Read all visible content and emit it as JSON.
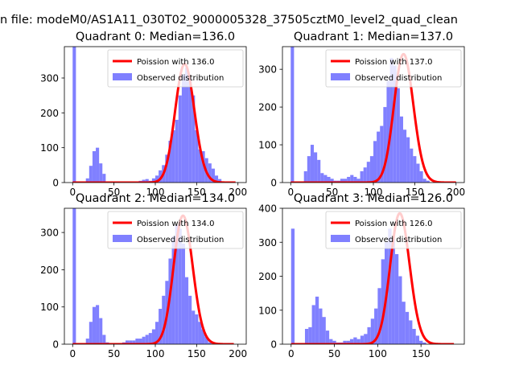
{
  "figure": {
    "suptitle": "n file: modeM0/AS1A11_030T02_9000005328_37505cztM0_level2_quad_clean"
  },
  "chart_data": [
    {
      "type": "bar",
      "title": "Quadrant 0: Median=136.0",
      "median": 136.0,
      "xlim": [
        -10,
        210
      ],
      "ylim": [
        0,
        390
      ],
      "xticks": [
        0,
        50,
        100,
        150,
        200
      ],
      "yticks": [
        0,
        100,
        200,
        300
      ],
      "legend_loc": "upper-right",
      "legend": [
        "Poission with 136.0",
        "Observed distribution"
      ],
      "bar_color": "#8080ff",
      "line_color": "#ff0000",
      "series": [
        {
          "name": "Poission with 136.0",
          "kind": "line",
          "x_range": [
            0,
            197
          ],
          "peak": 340,
          "mu": 136
        },
        {
          "name": "Observed distribution",
          "kind": "bar",
          "bin_start": 0,
          "bin_width": 4,
          "values": [
            390,
            0,
            0,
            0,
            12,
            48,
            90,
            100,
            55,
            25,
            0,
            0,
            0,
            0,
            0,
            0,
            0,
            0,
            0,
            0,
            5,
            8,
            10,
            5,
            12,
            20,
            35,
            50,
            80,
            120,
            150,
            180,
            250,
            310,
            330,
            300,
            250,
            150,
            95,
            90,
            70,
            55,
            40,
            20,
            10,
            0,
            0,
            0,
            0,
            0
          ]
        }
      ]
    },
    {
      "type": "bar",
      "title": "Quadrant 1: Median=137.0",
      "median": 137.0,
      "xlim": [
        -10,
        210
      ],
      "ylim": [
        0,
        360
      ],
      "xticks": [
        0,
        50,
        100,
        150,
        200
      ],
      "yticks": [
        0,
        100,
        200,
        300
      ],
      "legend_loc": "upper-right",
      "legend": [
        "Poission with 137.0",
        "Observed distribution"
      ],
      "bar_color": "#8080ff",
      "line_color": "#ff0000",
      "series": [
        {
          "name": "Poission with 137.0",
          "kind": "line",
          "x_range": [
            0,
            200
          ],
          "peak": 340,
          "mu": 137
        },
        {
          "name": "Observed distribution",
          "kind": "bar",
          "bin_start": 0,
          "bin_width": 4,
          "values": [
            360,
            0,
            0,
            0,
            30,
            70,
            100,
            80,
            60,
            25,
            20,
            15,
            10,
            5,
            5,
            10,
            10,
            15,
            20,
            15,
            10,
            30,
            40,
            55,
            70,
            110,
            135,
            150,
            200,
            270,
            330,
            310,
            250,
            175,
            140,
            120,
            90,
            70,
            50,
            30,
            10,
            5,
            0,
            0,
            0,
            0,
            0,
            0,
            0,
            0
          ]
        }
      ]
    },
    {
      "type": "bar",
      "title": "Quadrant 2: Median=134.0",
      "median": 134.0,
      "xlim": [
        -10,
        210
      ],
      "ylim": [
        0,
        365
      ],
      "xticks": [
        0,
        50,
        100,
        150,
        200
      ],
      "yticks": [
        0,
        100,
        200,
        300
      ],
      "legend_loc": "upper-right",
      "legend": [
        "Poission with 134.0",
        "Observed distribution"
      ],
      "bar_color": "#8080ff",
      "line_color": "#ff0000",
      "series": [
        {
          "name": "Poission with 134.0",
          "kind": "line",
          "x_range": [
            0,
            195
          ],
          "peak": 345,
          "mu": 134
        },
        {
          "name": "Observed distribution",
          "kind": "bar",
          "bin_start": 0,
          "bin_width": 4,
          "values": [
            365,
            0,
            0,
            0,
            15,
            60,
            100,
            105,
            70,
            25,
            5,
            0,
            0,
            0,
            0,
            5,
            10,
            10,
            10,
            15,
            15,
            20,
            25,
            30,
            40,
            60,
            95,
            130,
            170,
            230,
            290,
            320,
            310,
            270,
            180,
            130,
            90,
            80,
            60,
            40,
            20,
            5,
            0,
            0,
            0,
            0,
            0,
            0,
            0,
            0
          ]
        }
      ]
    },
    {
      "type": "bar",
      "title": "Quadrant 3: Median=126.0",
      "median": 126.0,
      "xlim": [
        -10,
        200
      ],
      "ylim": [
        0,
        400
      ],
      "xticks": [
        0,
        50,
        100,
        150
      ],
      "yticks": [
        0,
        100,
        200,
        300,
        400
      ],
      "legend_loc": "upper-right",
      "legend": [
        "Poission with 126.0",
        "Observed distribution"
      ],
      "bar_color": "#8080ff",
      "line_color": "#ff0000",
      "series": [
        {
          "name": "Poission with 126.0",
          "kind": "line",
          "x_range": [
            0,
            188
          ],
          "peak": 385,
          "mu": 126
        },
        {
          "name": "Observed distribution",
          "kind": "bar",
          "bin_start": 0,
          "bin_width": 4,
          "values": [
            340,
            0,
            0,
            0,
            45,
            50,
            115,
            140,
            105,
            80,
            40,
            15,
            10,
            5,
            5,
            10,
            10,
            15,
            20,
            15,
            25,
            30,
            50,
            75,
            105,
            165,
            250,
            300,
            340,
            310,
            265,
            200,
            125,
            95,
            70,
            45,
            25,
            10,
            5,
            0,
            0,
            0,
            0,
            0,
            0,
            0,
            0,
            0,
            0,
            0
          ]
        }
      ]
    }
  ]
}
